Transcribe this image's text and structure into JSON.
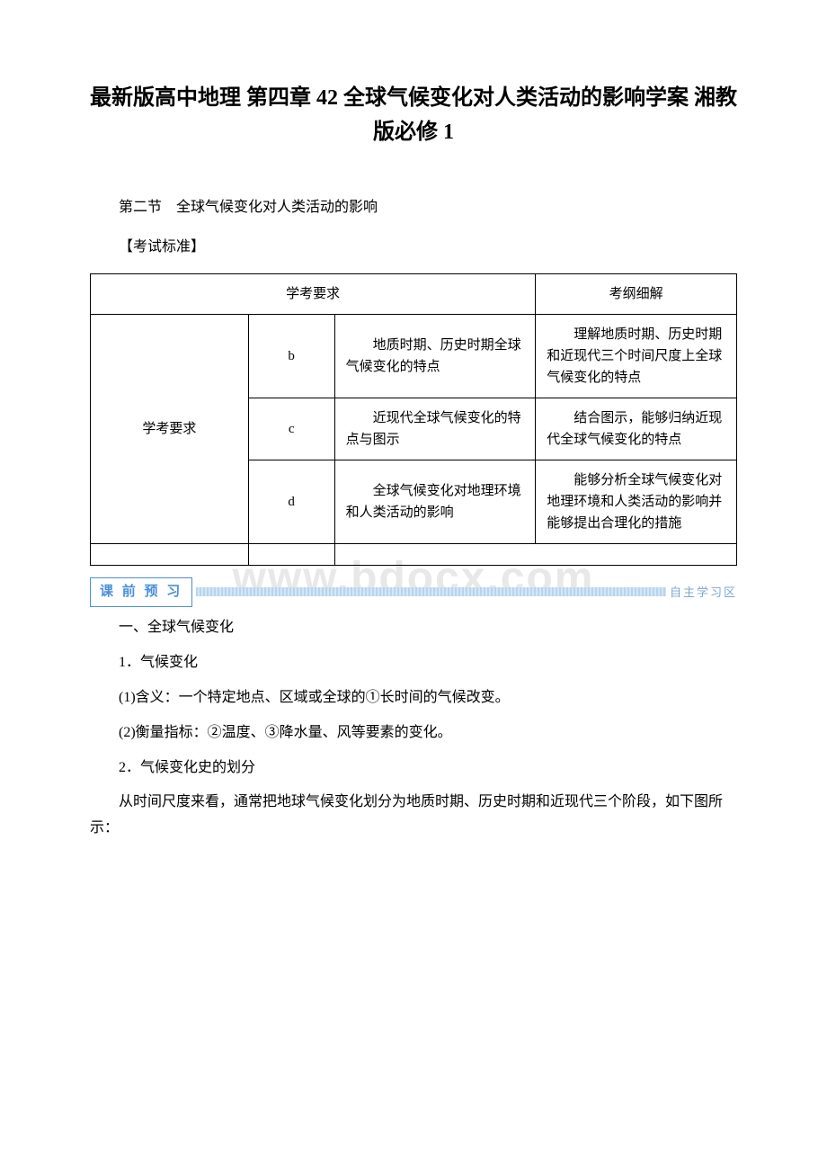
{
  "watermark": "www.bdocx.com",
  "title": "最新版高中地理 第四章 42 全球气候变化对人类活动的影响学案 湘教版必修 1",
  "section_title": "第二节　全球气候变化对人类活动的影响",
  "bracket_heading": "【考试标准】",
  "table": {
    "header": {
      "left": "学考要求",
      "right": "考纲细解"
    },
    "rowspan_label": "学考要求",
    "rows": [
      {
        "level": "b",
        "requirement": "　　地质时期、历史时期全球气候变化的特点",
        "explanation": "　　理解地质时期、历史时期和近现代三个时间尺度上全球气候变化的特点"
      },
      {
        "level": "c",
        "requirement": "　　近现代全球气候变化的特点与图示",
        "explanation": "　　结合图示，能够归纳近现代全球气候变化的特点"
      },
      {
        "level": "d",
        "requirement": "　　全球气候变化对地理环境和人类活动的影响",
        "explanation": "　　能够分析全球气候变化对地理环境和人类活动的影响并能够提出合理化的措施"
      }
    ]
  },
  "banner": {
    "left": "课 前 预 习",
    "right": "自主学习区"
  },
  "content": {
    "h1": "一、全球气候变化",
    "h2": "1．气候变化",
    "p1": "(1)含义：一个特定地点、区域或全球的①长时间的气候改变。",
    "p2": "(2)衡量指标：②温度、③降水量、风等要素的变化。",
    "h3": "2．气候变化史的划分",
    "p3": "从时间尺度来看，通常把地球气候变化划分为地质时期、历史时期和近现代三个阶段，如下图所示："
  },
  "colors": {
    "background": "#ffffff",
    "text": "#000000",
    "border": "#000000",
    "watermark": "#e8e8e8",
    "banner_border": "#4a90d9",
    "banner_fill": "#b8d4ed",
    "banner_right_text": "#7aa8d4"
  },
  "fonts": {
    "body_family": "SimSun",
    "body_size": 16,
    "title_size": 24,
    "table_size": 15,
    "watermark_size": 48
  }
}
